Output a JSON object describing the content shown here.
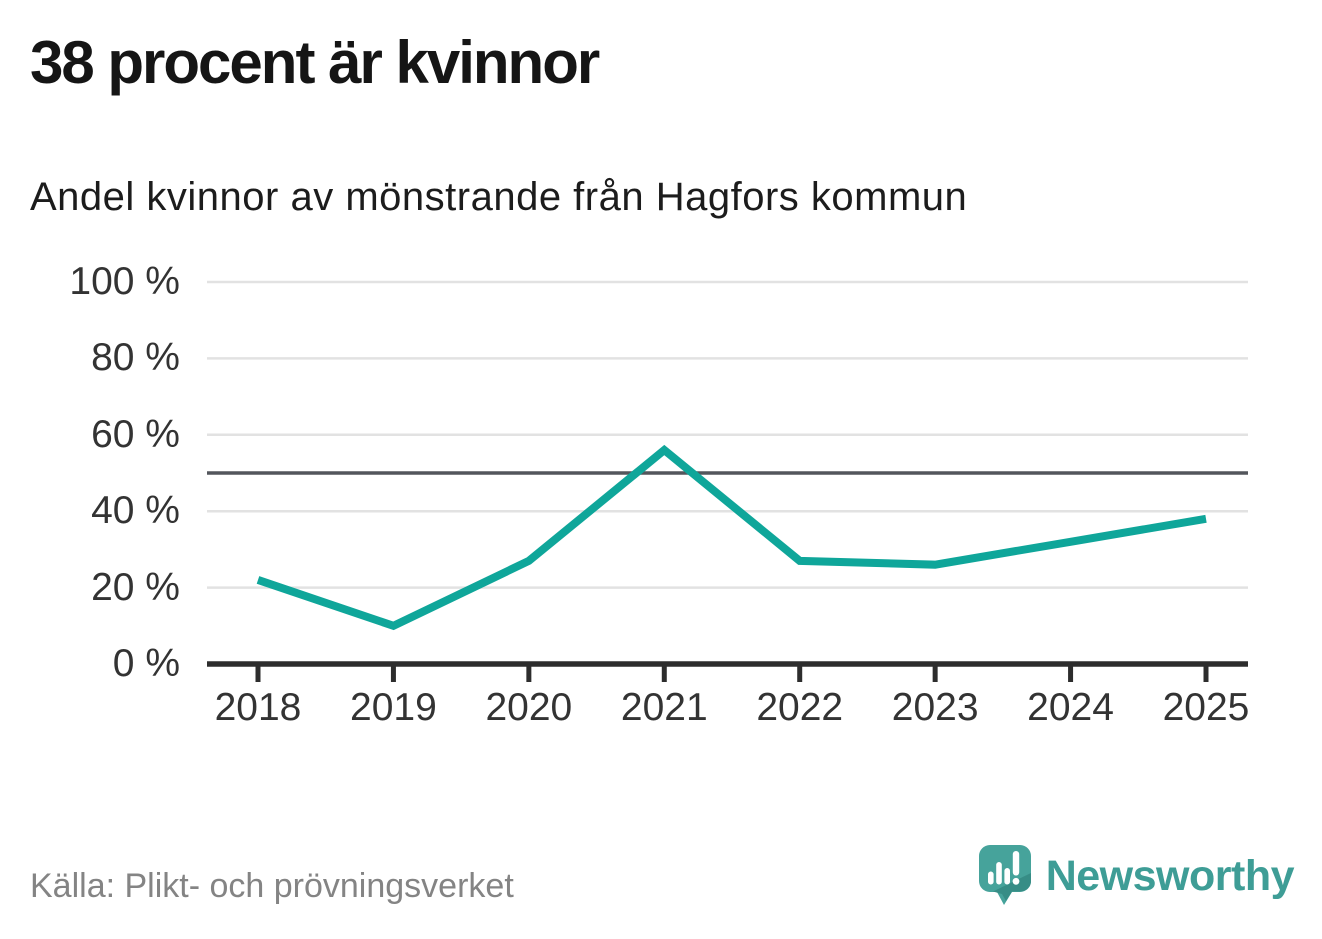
{
  "header": {
    "title": "38 procent är kvinnor",
    "subtitle": "Andel kvinnor av mönstrande från Hagfors kommun"
  },
  "chart_data": {
    "type": "line",
    "title": "38 procent är kvinnor",
    "subtitle": "Andel kvinnor av mönstrande från Hagfors kommun",
    "categories": [
      "2018",
      "2019",
      "2020",
      "2021",
      "2022",
      "2023",
      "2024",
      "2025"
    ],
    "series": [
      {
        "name": "Andel kvinnor av mönstrande",
        "values": [
          22,
          10,
          27,
          56,
          27,
          26,
          32,
          38
        ]
      }
    ],
    "ylim": [
      0,
      100
    ],
    "yticks": [
      0,
      20,
      40,
      60,
      80,
      100
    ],
    "ytick_labels": [
      "0 %",
      "20 %",
      "40 %",
      "60 %",
      "80 %",
      "100 %"
    ],
    "reference_line": 50,
    "grid": "horizontal",
    "legend": "none"
  },
  "footer": {
    "source": "Källa: Plikt- och prövningsverket",
    "brand": "Newsworthy"
  },
  "colors": {
    "line": "#0fa69a",
    "grid": "#e2e2e2",
    "reference": "#53565c",
    "axis": "#2d2d2d",
    "label": "#333333",
    "source_text": "#848484",
    "logo": "#46a39b",
    "logo_dark": "#378d86",
    "logo_bars": "#ffffff",
    "wordmark": "#3e9d96"
  }
}
